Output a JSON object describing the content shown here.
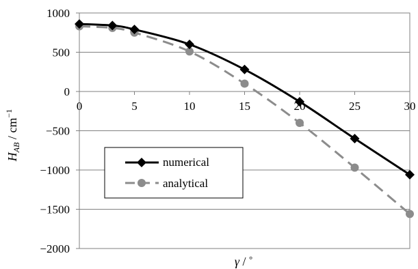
{
  "chart_data": {
    "type": "line",
    "title": "",
    "xlabel": {
      "symbol": "γ",
      "unit": "°"
    },
    "ylabel": {
      "symbol": "H",
      "subscript": "AB",
      "unit": "cm",
      "unit_exponent": "−1"
    },
    "x": [
      0,
      3,
      5,
      10,
      15,
      20,
      25,
      30
    ],
    "xlim": [
      0,
      30
    ],
    "ylim": [
      -2000,
      1000
    ],
    "x_ticks": [
      "0",
      "5",
      "10",
      "15",
      "20",
      "25",
      "30"
    ],
    "x_tick_values": [
      0,
      5,
      10,
      15,
      20,
      25,
      30
    ],
    "y_ticks": [
      "1000",
      "500",
      "0",
      "−500",
      "−1000",
      "−1500",
      "−2000"
    ],
    "y_tick_values": [
      1000,
      500,
      0,
      -500,
      -1000,
      -1500,
      -2000
    ],
    "grid": "horizontal",
    "legend_position": "bottom-left",
    "series": [
      {
        "name": "numerical",
        "values": [
          860,
          840,
          790,
          600,
          280,
          -130,
          -600,
          -1060
        ],
        "color": "#000000",
        "marker": "diamond",
        "line_style": "solid"
      },
      {
        "name": "analytical",
        "values": [
          830,
          810,
          750,
          510,
          100,
          -400,
          -970,
          -1560
        ],
        "color": "#8c8c8c",
        "marker": "circle",
        "line_style": "dashed"
      }
    ]
  }
}
